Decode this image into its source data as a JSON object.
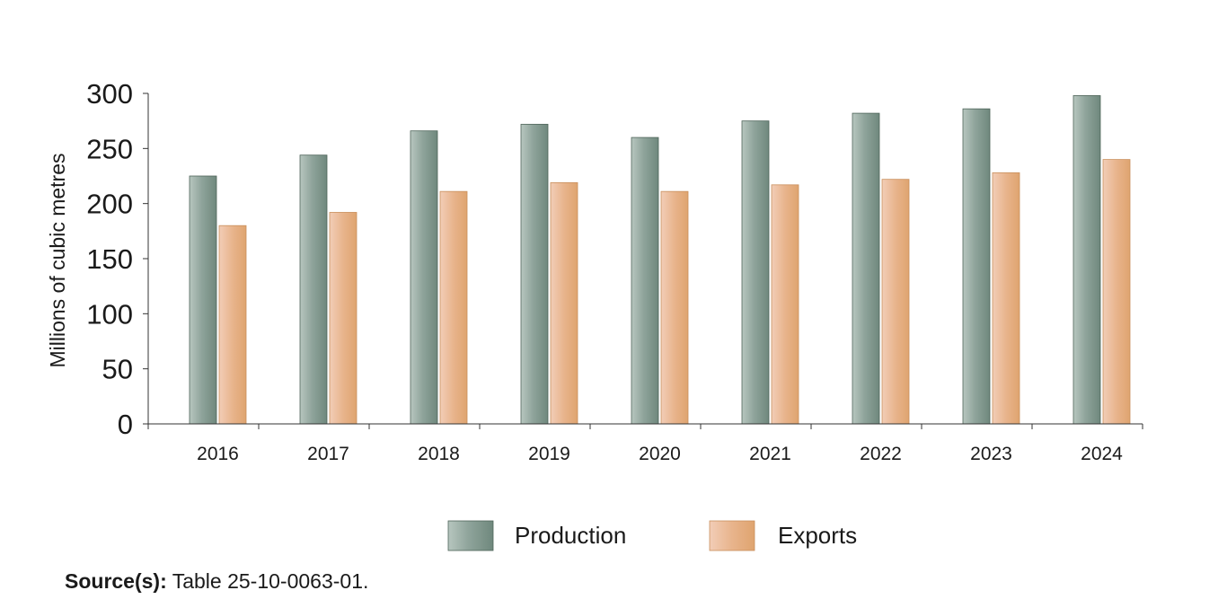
{
  "chart_data": {
    "type": "bar",
    "title": "",
    "xlabel": "",
    "ylabel": "Millions of cubic metres",
    "ylim": [
      0,
      300
    ],
    "yticks": [
      0,
      50,
      100,
      150,
      200,
      250,
      300
    ],
    "categories": [
      "2016",
      "2017",
      "2018",
      "2019",
      "2020",
      "2021",
      "2022",
      "2023",
      "2024"
    ],
    "series": [
      {
        "name": "Production",
        "values": [
          225,
          244,
          266,
          272,
          260,
          275,
          282,
          286,
          298
        ],
        "color": "#7d9489"
      },
      {
        "name": "Exports",
        "values": [
          180,
          192,
          211,
          219,
          211,
          217,
          222,
          228,
          240
        ],
        "color": "#e3ac7c"
      }
    ],
    "grid": false,
    "legend_position": "bottom-center"
  },
  "source": {
    "label": "Source(s):",
    "text": " Table 25-10-0063-01."
  }
}
